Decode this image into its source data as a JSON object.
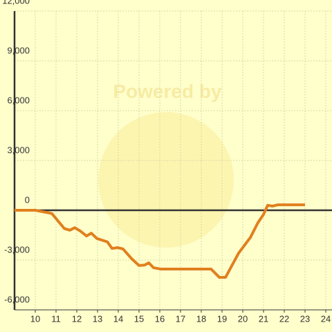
{
  "chart_data": {
    "type": "line",
    "watermark": "Powered by",
    "x": [
      9,
      10,
      10.63,
      10.8,
      11.4,
      11.67,
      11.9,
      12.17,
      12.47,
      12.7,
      12.97,
      13.47,
      13.7,
      13.97,
      14.23,
      14.63,
      15.0,
      15.27,
      15.47,
      15.7,
      16.03,
      18.47,
      18.87,
      19.17,
      19.8,
      20.37,
      20.73,
      21.0,
      21.2,
      21.43,
      21.7,
      23.0
    ],
    "series": [
      {
        "color": "#e0801e",
        "values": [
          0,
          0,
          -150,
          -200,
          -1100,
          -1200,
          -1050,
          -1250,
          -1550,
          -1380,
          -1700,
          -1900,
          -2300,
          -2250,
          -2330,
          -2900,
          -3330,
          -3300,
          -3170,
          -3460,
          -3540,
          -3540,
          -4040,
          -4040,
          -2580,
          -1630,
          -750,
          -250,
          300,
          250,
          330,
          330
        ]
      }
    ],
    "xlim": [
      9,
      24.3
    ],
    "xticks": [
      10,
      11,
      12,
      13,
      14,
      15,
      16,
      17,
      18,
      19,
      20,
      21,
      22,
      23,
      24
    ],
    "ylim": [
      -6000,
      12000
    ],
    "yticks": [
      {
        "value": -6000,
        "label": "-6,000"
      },
      {
        "value": -3000,
        "label": "-3,000"
      },
      0,
      {
        "value": 3000,
        "label": "3,000"
      },
      {
        "value": 6000,
        "label": "6,000"
      },
      {
        "value": 9000,
        "label": "9,000"
      },
      {
        "value": 12000,
        "label": "12,000"
      }
    ],
    "grid": true
  }
}
